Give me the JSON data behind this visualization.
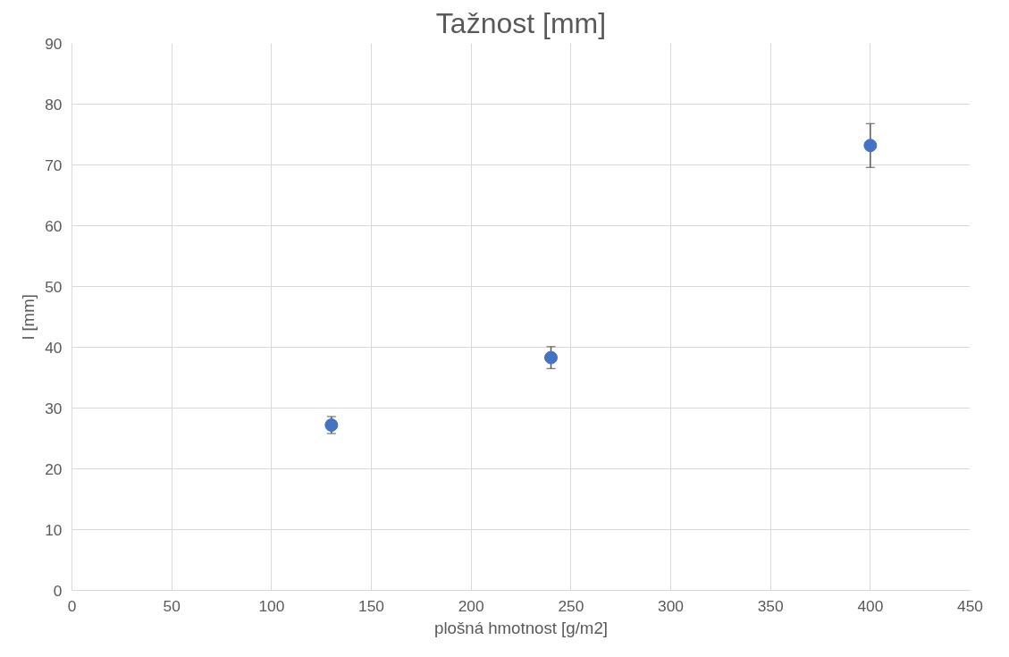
{
  "chart_data": {
    "type": "scatter",
    "title": "Tažnost [mm]",
    "xlabel": "plošná hmotnost [g/m2]",
    "ylabel": "l [mm]",
    "x": [
      130,
      240,
      400
    ],
    "series": [
      {
        "color": "#4472c4",
        "values": [
          27.2,
          38.3,
          73.2
        ],
        "errors": [
          1.4,
          1.8,
          3.6
        ]
      }
    ],
    "xlim": [
      0,
      450
    ],
    "xticks": [
      0,
      50,
      100,
      150,
      200,
      250,
      300,
      350,
      400,
      450
    ],
    "ylim": [
      0,
      90
    ],
    "yticks": [
      0,
      10,
      20,
      30,
      40,
      50,
      60,
      70,
      80,
      90
    ],
    "grid": true,
    "marker": "circle"
  }
}
